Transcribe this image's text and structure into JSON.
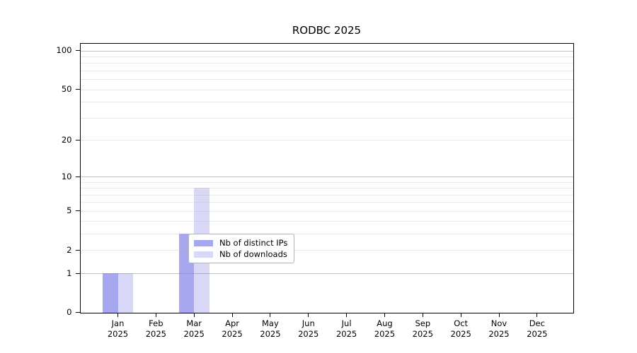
{
  "title": "RODBC 2025",
  "chart_data": {
    "type": "bar",
    "title": "RODBC 2025",
    "categories": [
      [
        "Jan",
        "2025"
      ],
      [
        "Feb",
        "2025"
      ],
      [
        "Mar",
        "2025"
      ],
      [
        "Apr",
        "2025"
      ],
      [
        "May",
        "2025"
      ],
      [
        "Jun",
        "2025"
      ],
      [
        "Jul",
        "2025"
      ],
      [
        "Aug",
        "2025"
      ],
      [
        "Sep",
        "2025"
      ],
      [
        "Oct",
        "2025"
      ],
      [
        "Nov",
        "2025"
      ],
      [
        "Dec",
        "2025"
      ]
    ],
    "series": [
      {
        "name": "Nb of distinct IPs",
        "color": "#a7a7ef",
        "values": [
          1,
          0,
          3,
          0,
          0,
          0,
          0,
          0,
          0,
          0,
          0,
          0
        ]
      },
      {
        "name": "Nb of downloads",
        "color": "#d9d9f7",
        "values": [
          1,
          0,
          8,
          0,
          0,
          0,
          0,
          0,
          0,
          0,
          0,
          0
        ]
      }
    ],
    "xlabel": "",
    "ylabel": "",
    "y_scale": "log10(1+x)",
    "ylim": [
      0,
      113
    ],
    "y_tick_values": [
      0,
      1,
      2,
      5,
      10,
      20,
      50,
      100
    ],
    "y_tick_labels": [
      "0",
      "1",
      "2",
      "5",
      "10",
      "20",
      "50",
      "100"
    ],
    "grid": {
      "enabled": true,
      "major_values": [
        1,
        10,
        100
      ],
      "minor_values": [
        2,
        3,
        4,
        5,
        6,
        7,
        8,
        9,
        20,
        30,
        40,
        50,
        60,
        70,
        80,
        90
      ]
    },
    "legend_position": "bottom-center",
    "colors": {
      "grid_major": "#c9c9c9",
      "grid_minor": "#ebebeb",
      "axis": "#000000",
      "legend_border": "#b3b3b3",
      "background": "#ffffff"
    }
  }
}
